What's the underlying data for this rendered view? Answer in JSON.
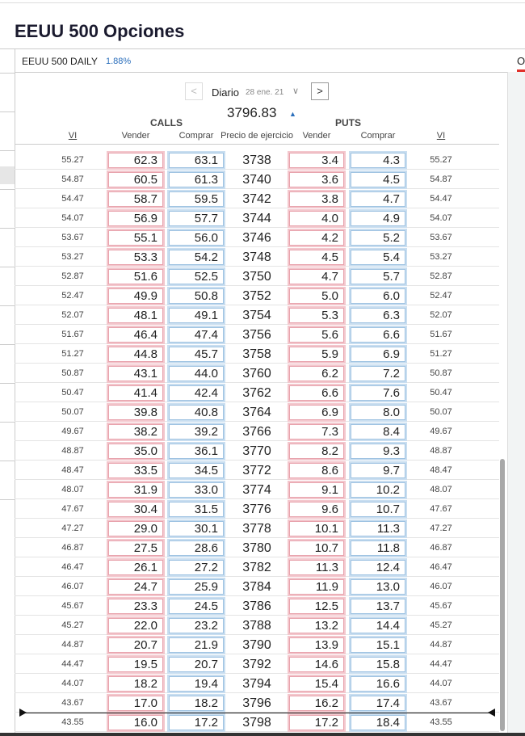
{
  "header": {
    "title": "EEUU 500 Opciones",
    "tab": "EEUU 500 DAILY",
    "tab_change": "1.88%",
    "side_tab": "O"
  },
  "controls": {
    "period": "Diario",
    "date": "28 ene. 21",
    "price": "3796.83"
  },
  "table": {
    "groups": [
      "CALLS",
      "PUTS"
    ],
    "columns": [
      "VI",
      "Vender",
      "Comprar",
      "Precio de ejercicio",
      "Vender",
      "Comprar",
      "VI"
    ],
    "rows": [
      [
        "55.27",
        "62.3",
        "63.1",
        "3738",
        "3.4",
        "4.3",
        "55.27"
      ],
      [
        "54.87",
        "60.5",
        "61.3",
        "3740",
        "3.6",
        "4.5",
        "54.87"
      ],
      [
        "54.47",
        "58.7",
        "59.5",
        "3742",
        "3.8",
        "4.7",
        "54.47"
      ],
      [
        "54.07",
        "56.9",
        "57.7",
        "3744",
        "4.0",
        "4.9",
        "54.07"
      ],
      [
        "53.67",
        "55.1",
        "56.0",
        "3746",
        "4.2",
        "5.2",
        "53.67"
      ],
      [
        "53.27",
        "53.3",
        "54.2",
        "3748",
        "4.5",
        "5.4",
        "53.27"
      ],
      [
        "52.87",
        "51.6",
        "52.5",
        "3750",
        "4.7",
        "5.7",
        "52.87"
      ],
      [
        "52.47",
        "49.9",
        "50.8",
        "3752",
        "5.0",
        "6.0",
        "52.47"
      ],
      [
        "52.07",
        "48.1",
        "49.1",
        "3754",
        "5.3",
        "6.3",
        "52.07"
      ],
      [
        "51.67",
        "46.4",
        "47.4",
        "3756",
        "5.6",
        "6.6",
        "51.67"
      ],
      [
        "51.27",
        "44.8",
        "45.7",
        "3758",
        "5.9",
        "6.9",
        "51.27"
      ],
      [
        "50.87",
        "43.1",
        "44.0",
        "3760",
        "6.2",
        "7.2",
        "50.87"
      ],
      [
        "50.47",
        "41.4",
        "42.4",
        "3762",
        "6.6",
        "7.6",
        "50.47"
      ],
      [
        "50.07",
        "39.8",
        "40.8",
        "3764",
        "6.9",
        "8.0",
        "50.07"
      ],
      [
        "49.67",
        "38.2",
        "39.2",
        "3766",
        "7.3",
        "8.4",
        "49.67"
      ],
      [
        "48.87",
        "35.0",
        "36.1",
        "3770",
        "8.2",
        "9.3",
        "48.87"
      ],
      [
        "48.47",
        "33.5",
        "34.5",
        "3772",
        "8.6",
        "9.7",
        "48.47"
      ],
      [
        "48.07",
        "31.9",
        "33.0",
        "3774",
        "9.1",
        "10.2",
        "48.07"
      ],
      [
        "47.67",
        "30.4",
        "31.5",
        "3776",
        "9.6",
        "10.7",
        "47.67"
      ],
      [
        "47.27",
        "29.0",
        "30.1",
        "3778",
        "10.1",
        "11.3",
        "47.27"
      ],
      [
        "46.87",
        "27.5",
        "28.6",
        "3780",
        "10.7",
        "11.8",
        "46.87"
      ],
      [
        "46.47",
        "26.1",
        "27.2",
        "3782",
        "11.3",
        "12.4",
        "46.47"
      ],
      [
        "46.07",
        "24.7",
        "25.9",
        "3784",
        "11.9",
        "13.0",
        "46.07"
      ],
      [
        "45.67",
        "23.3",
        "24.5",
        "3786",
        "12.5",
        "13.7",
        "45.67"
      ],
      [
        "45.27",
        "22.0",
        "23.2",
        "3788",
        "13.2",
        "14.4",
        "45.27"
      ],
      [
        "44.87",
        "20.7",
        "21.9",
        "3790",
        "13.9",
        "15.1",
        "44.87"
      ],
      [
        "44.47",
        "19.5",
        "20.7",
        "3792",
        "14.6",
        "15.8",
        "44.47"
      ],
      [
        "44.07",
        "18.2",
        "19.4",
        "3794",
        "15.4",
        "16.6",
        "44.07"
      ],
      [
        "43.67",
        "17.0",
        "18.2",
        "3796",
        "16.2",
        "17.4",
        "43.67"
      ],
      [
        "43.55",
        "16.0",
        "17.2",
        "3798",
        "17.2",
        "18.4",
        "43.55"
      ]
    ]
  }
}
